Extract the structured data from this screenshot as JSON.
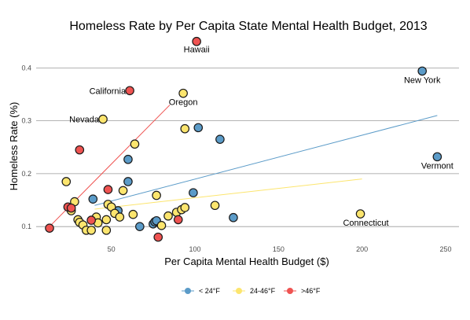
{
  "chart_data": {
    "type": "scatter",
    "title": "Homeless Rate by Per Capita State Mental Health Budget, 2013",
    "xlabel": "Per Capita Mental Health Budget ($)",
    "ylabel": "Homeless Rate (%)",
    "xlim": [
      5,
      258
    ],
    "ylim": [
      0.072,
      0.46
    ],
    "x_ticks": [
      50,
      100,
      150,
      200,
      250
    ],
    "y_ticks": [
      0.1,
      0.2,
      0.3,
      0.4
    ],
    "x_tick_labels": [
      "50",
      "100",
      "150",
      "200",
      "250"
    ],
    "y_tick_labels": [
      "0.1",
      "0.2",
      "0.3",
      "0.4"
    ],
    "grid": "horizontal",
    "legend_position": "bottom",
    "series": [
      {
        "name": "< 24°F",
        "color": "#5b9bc8",
        "points": [
          [
            39,
            0.152
          ],
          [
            60,
            0.227
          ],
          [
            60,
            0.185
          ],
          [
            54,
            0.13
          ],
          [
            67,
            0.1
          ],
          [
            75,
            0.105
          ],
          [
            76,
            0.109
          ],
          [
            77,
            0.111
          ],
          [
            99,
            0.164
          ],
          [
            102,
            0.287
          ],
          [
            115,
            0.265
          ],
          [
            123,
            0.117
          ],
          [
            236,
            0.394
          ],
          [
            245,
            0.232
          ]
        ],
        "trend": [
          [
            40,
            0.14
          ],
          [
            245,
            0.31
          ]
        ]
      },
      {
        "name": "24-46°F",
        "color": "#fce56e",
        "points": [
          [
            23,
            0.185
          ],
          [
            28,
            0.147
          ],
          [
            26,
            0.13
          ],
          [
            30,
            0.113
          ],
          [
            31,
            0.108
          ],
          [
            33,
            0.103
          ],
          [
            35,
            0.093
          ],
          [
            38,
            0.093
          ],
          [
            41,
            0.118
          ],
          [
            42,
            0.107
          ],
          [
            45,
            0.303
          ],
          [
            47,
            0.113
          ],
          [
            47,
            0.093
          ],
          [
            48,
            0.142
          ],
          [
            50,
            0.137
          ],
          [
            52,
            0.125
          ],
          [
            55,
            0.118
          ],
          [
            57,
            0.168
          ],
          [
            63,
            0.123
          ],
          [
            64,
            0.256
          ],
          [
            77,
            0.159
          ],
          [
            80,
            0.102
          ],
          [
            84,
            0.12
          ],
          [
            89,
            0.127
          ],
          [
            92,
            0.132
          ],
          [
            94,
            0.136
          ],
          [
            93,
            0.352
          ],
          [
            94,
            0.285
          ],
          [
            112,
            0.14
          ],
          [
            199,
            0.124
          ]
        ],
        "trend": [
          [
            40,
            0.133
          ],
          [
            200,
            0.19
          ]
        ]
      },
      {
        "name": ">46°F",
        "color": "#ef5351",
        "points": [
          [
            13,
            0.097
          ],
          [
            24,
            0.137
          ],
          [
            26,
            0.135
          ],
          [
            31,
            0.245
          ],
          [
            38,
            0.112
          ],
          [
            48,
            0.17
          ],
          [
            61,
            0.357
          ],
          [
            78,
            0.08
          ],
          [
            90,
            0.113
          ],
          [
            101,
            0.45
          ]
        ],
        "trend": [
          [
            13,
            0.1
          ],
          [
            85,
            0.33
          ]
        ]
      }
    ],
    "annotations": [
      {
        "text": "Hawaii",
        "x": 101,
        "y": 0.45
      },
      {
        "text": "New York",
        "x": 236,
        "y": 0.394
      },
      {
        "text": "California",
        "x": 61,
        "y": 0.357
      },
      {
        "text": "Oregon",
        "x": 93,
        "y": 0.352
      },
      {
        "text": "Nevada",
        "x": 45,
        "y": 0.303
      },
      {
        "text": "Vermont",
        "x": 245,
        "y": 0.232
      },
      {
        "text": "Connecticut",
        "x": 199,
        "y": 0.124
      }
    ]
  }
}
